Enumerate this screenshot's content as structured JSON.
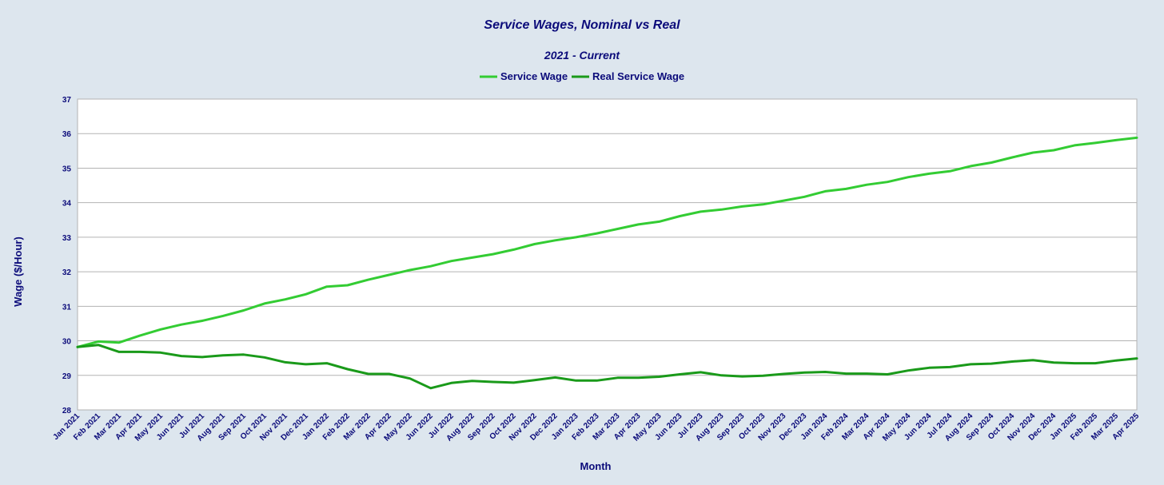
{
  "chart_data": {
    "type": "line",
    "title": "Service Wages, Nominal vs Real",
    "subtitle": "2021 - Current",
    "xlabel": "Month",
    "ylabel": "Wage ($/Hour)",
    "ylim": [
      28,
      37
    ],
    "yticks": [
      28,
      29,
      30,
      31,
      32,
      33,
      34,
      35,
      36,
      37
    ],
    "grid": true,
    "legend_position": "top-center",
    "categories": [
      "Jan 2021",
      "Feb 2021",
      "Mar 2021",
      "Apr 2021",
      "May 2021",
      "Jun 2021",
      "Jul 2021",
      "Aug 2021",
      "Sep 2021",
      "Oct 2021",
      "Nov 2021",
      "Dec 2021",
      "Jan 2022",
      "Feb 2022",
      "Mar 2022",
      "Apr 2022",
      "May 2022",
      "Jun 2022",
      "Jul 2022",
      "Aug 2022",
      "Sep 2022",
      "Oct 2022",
      "Nov 2022",
      "Dec 2022",
      "Jan 2023",
      "Feb 2023",
      "Mar 2023",
      "Apr 2023",
      "May 2023",
      "Jun 2023",
      "Jul 2023",
      "Aug 2023",
      "Sep 2023",
      "Oct 2023",
      "Nov 2023",
      "Dec 2023",
      "Jan 2024",
      "Feb 2024",
      "Mar 2024",
      "Apr 2024",
      "May 2024",
      "Jun 2024",
      "Jul 2024",
      "Aug 2024",
      "Sep 2024",
      "Oct 2024",
      "Nov 2024",
      "Dec 2024",
      "Jan 2025",
      "Feb 2025",
      "Mar 2025",
      "Apr 2025"
    ],
    "series": [
      {
        "name": "Service Wage",
        "color": "#33cc33",
        "values": [
          29.82,
          29.98,
          29.95,
          30.15,
          30.33,
          30.47,
          30.58,
          30.72,
          30.88,
          31.08,
          31.2,
          31.35,
          31.57,
          31.61,
          31.77,
          31.91,
          32.05,
          32.16,
          32.31,
          32.41,
          32.51,
          32.64,
          32.8,
          32.91,
          33.0,
          33.11,
          33.24,
          33.37,
          33.45,
          33.61,
          33.74,
          33.8,
          33.89,
          33.95,
          34.06,
          34.17,
          34.33,
          34.4,
          34.52,
          34.6,
          34.74,
          34.84,
          34.91,
          35.06,
          35.16,
          35.31,
          35.45,
          35.52,
          35.66,
          35.73,
          35.81,
          35.88
        ]
      },
      {
        "name": "Real Service  Wage",
        "color": "#1a9a1a",
        "values": [
          29.82,
          29.88,
          29.68,
          29.68,
          29.66,
          29.56,
          29.53,
          29.58,
          29.6,
          29.52,
          29.38,
          29.32,
          29.35,
          29.18,
          29.04,
          29.04,
          28.91,
          28.63,
          28.78,
          28.84,
          28.81,
          28.79,
          28.86,
          28.94,
          28.85,
          28.85,
          28.93,
          28.93,
          28.96,
          29.03,
          29.09,
          29.0,
          28.97,
          28.99,
          29.04,
          29.08,
          29.1,
          29.05,
          29.05,
          29.03,
          29.14,
          29.22,
          29.24,
          29.32,
          29.34,
          29.4,
          29.44,
          29.37,
          29.35,
          29.35,
          29.43,
          29.49
        ]
      }
    ]
  }
}
